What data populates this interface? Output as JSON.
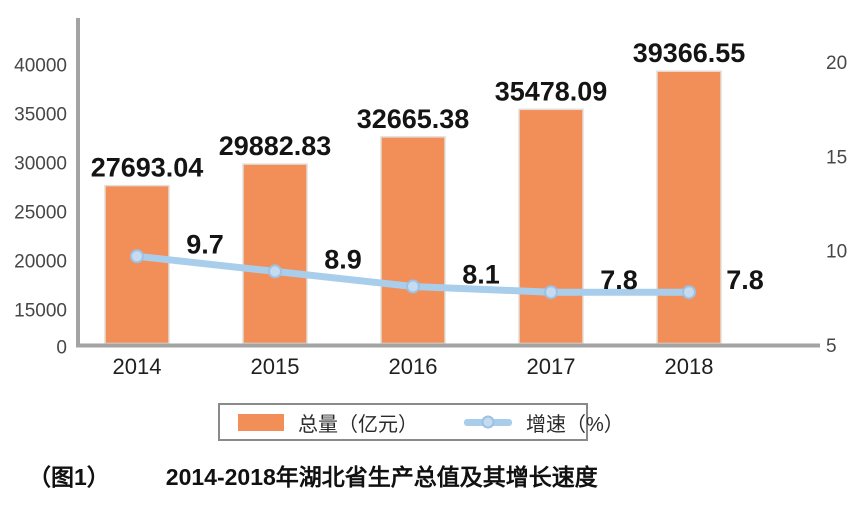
{
  "chart_data": {
    "type": "bar",
    "subtype": "combo-bar-line",
    "title": "2014-2018年湖北省生产总值及其增长速度",
    "categories": [
      "2014",
      "2015",
      "2016",
      "2017",
      "2018"
    ],
    "series": [
      {
        "name": "总量（亿元）",
        "chart": "bar",
        "axis": "left",
        "values": [
          27693.04,
          29882.83,
          32665.38,
          35478.09,
          39366.55
        ]
      },
      {
        "name": "增速（%）",
        "chart": "line",
        "axis": "right",
        "values": [
          9.7,
          8.9,
          8.1,
          7.8,
          7.8
        ]
      }
    ],
    "left_axis": {
      "tick_labels": [
        "0",
        "15000",
        "20000",
        "25000",
        "30000",
        "35000",
        "40000"
      ],
      "linear_range": [
        15000,
        40000
      ],
      "broken_below": 15000
    },
    "right_axis": {
      "tick_labels": [
        "5",
        "10",
        "15",
        "20"
      ],
      "range": [
        5,
        20
      ]
    },
    "legend_position": "bottom",
    "grid": false
  },
  "caption": {
    "figure_label": "（图1）"
  },
  "colors": {
    "bar_fill": "#F28E57",
    "bar_edge": "#E3DED9",
    "line": "#A9CEEC",
    "marker_fill": "#C6DBEF",
    "marker_stroke": "#9CC2E5",
    "axis_line": "#A3A3A3",
    "label_text": "#141414",
    "tick_text": "#474747",
    "legend_border": "#8A8A8A",
    "background": "#FFFFFF"
  }
}
